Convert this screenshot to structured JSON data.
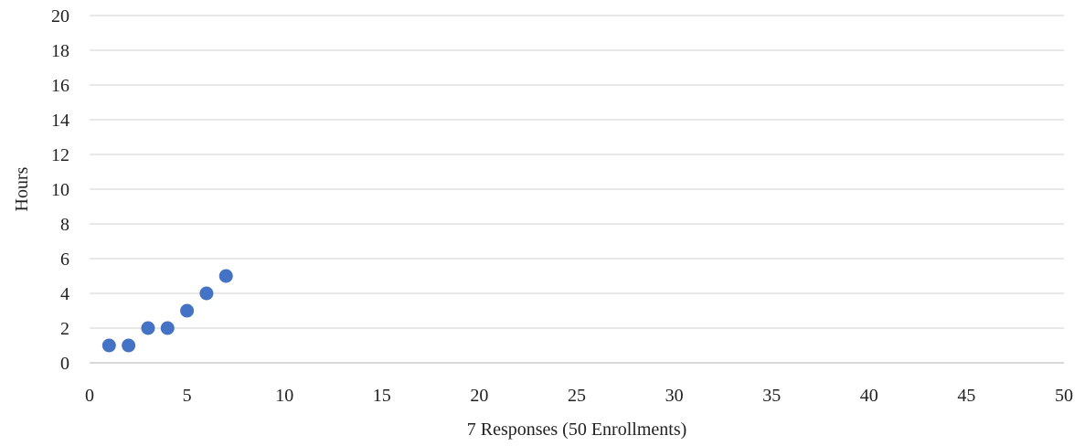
{
  "chart_data": {
    "type": "scatter",
    "title": "",
    "xlabel": "7 Responses (50 Enrollments)",
    "ylabel": "Hours",
    "xlim": [
      0,
      50
    ],
    "ylim": [
      0,
      20
    ],
    "x_ticks": [
      0,
      5,
      10,
      15,
      20,
      25,
      30,
      35,
      40,
      45,
      50
    ],
    "y_ticks": [
      0,
      2,
      4,
      6,
      8,
      10,
      12,
      14,
      16,
      18,
      20
    ],
    "grid": "horizontal",
    "legend": "none",
    "series": [
      {
        "color": "#4472c4",
        "points": [
          {
            "x": 1,
            "y": 1
          },
          {
            "x": 2,
            "y": 1
          },
          {
            "x": 3,
            "y": 2
          },
          {
            "x": 4,
            "y": 2
          },
          {
            "x": 5,
            "y": 3
          },
          {
            "x": 6,
            "y": 4
          },
          {
            "x": 7,
            "y": 5
          }
        ]
      }
    ]
  }
}
